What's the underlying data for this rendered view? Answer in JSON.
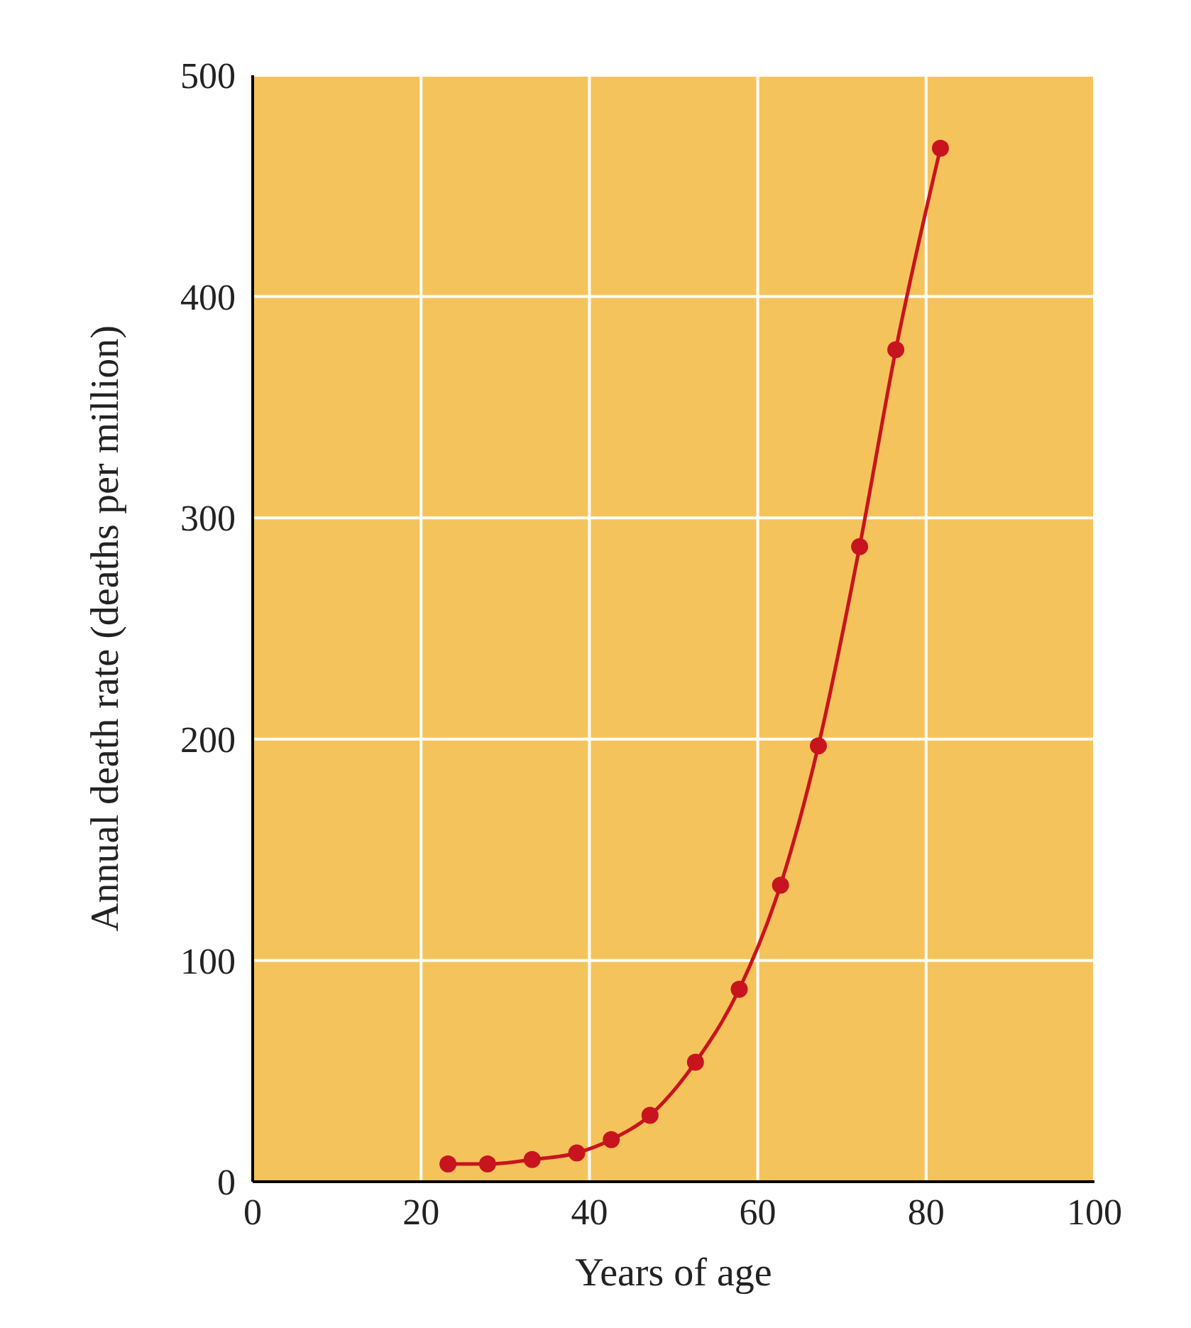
{
  "chart_data": {
    "type": "line",
    "xlabel": "Years of age",
    "ylabel": "Annual death rate (deaths per million)",
    "x": [
      23.2,
      27.9,
      33.2,
      38.5,
      42.6,
      47.2,
      52.6,
      57.8,
      62.7,
      67.2,
      72.1,
      76.4,
      81.7
    ],
    "series": [
      {
        "color": "#c8141e",
        "values": [
          8,
          8,
          10,
          13,
          19,
          30,
          54,
          87,
          134,
          197,
          287,
          376,
          467
        ]
      }
    ],
    "xlim": [
      0,
      100
    ],
    "xticks": [
      0,
      20,
      40,
      60,
      80,
      100
    ],
    "ylim": [
      0,
      500
    ],
    "yticks": [
      0,
      100,
      200,
      300,
      400,
      500
    ],
    "grid": true,
    "marker": "circle",
    "line_style": "solid"
  }
}
